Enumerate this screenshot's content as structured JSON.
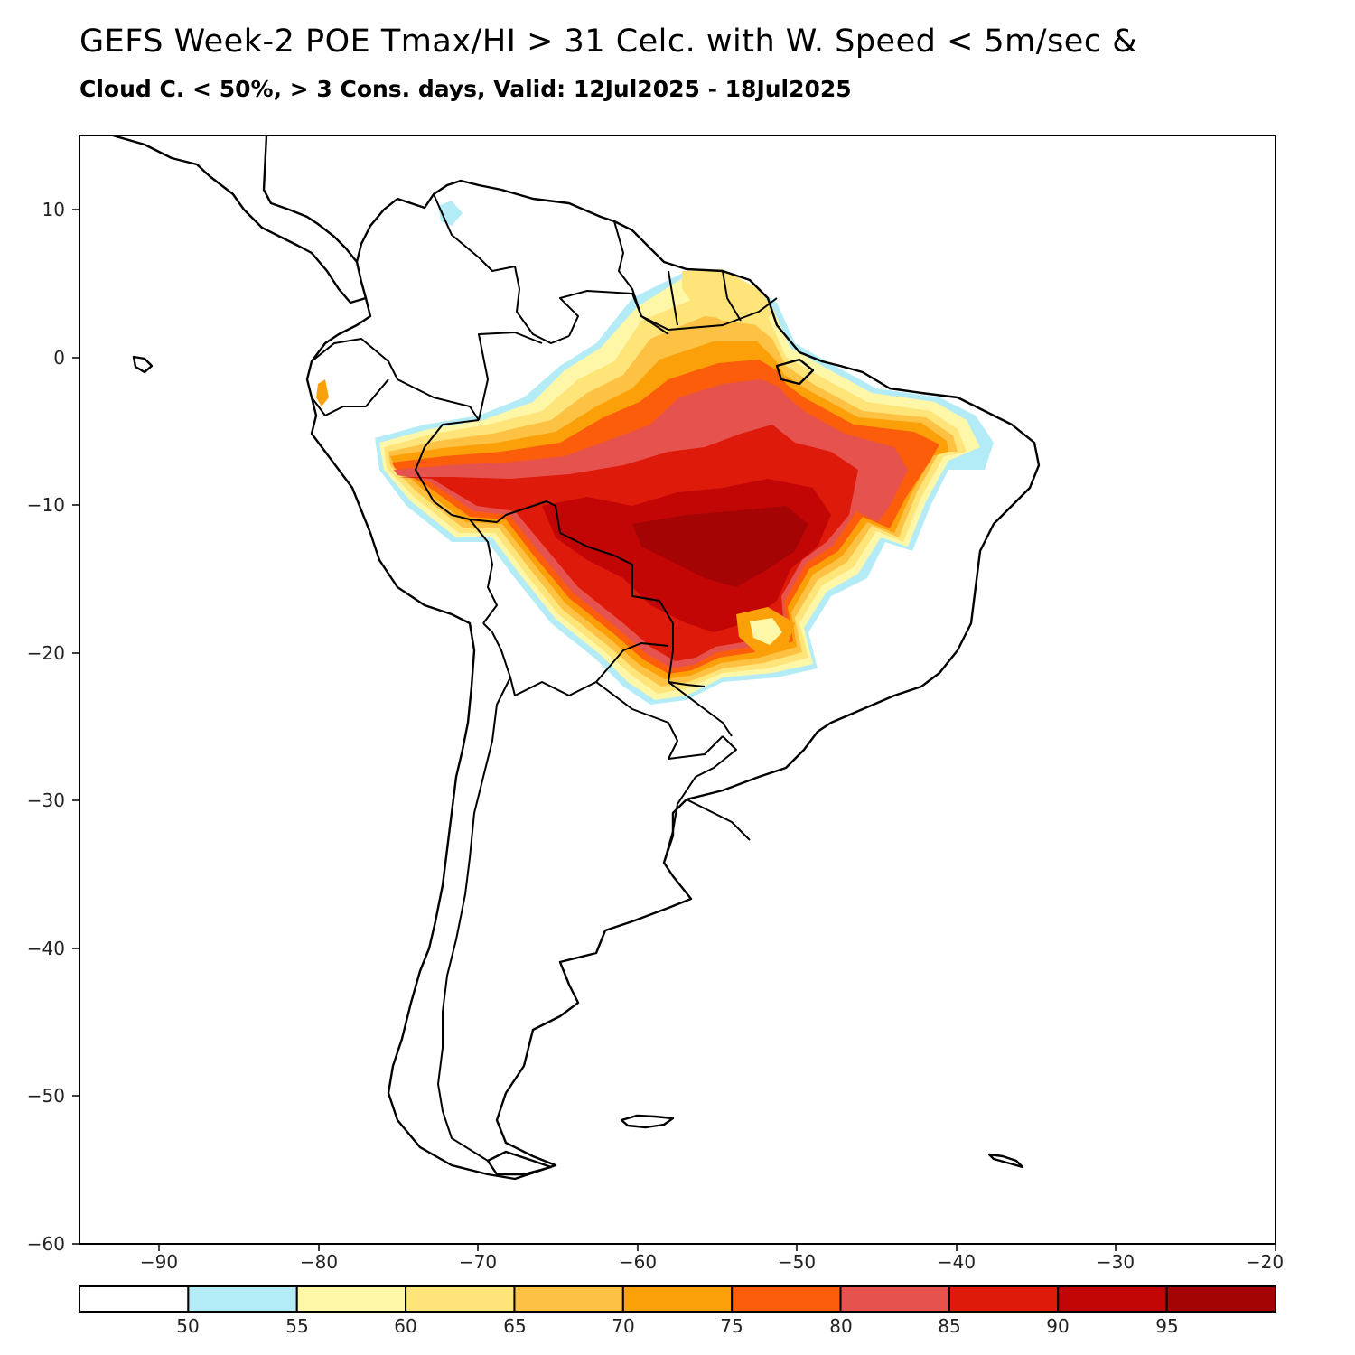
{
  "title": {
    "line1": "GEFS Week-2 POE Tmax/HI > 31 Celc. with W. Speed < 5m/sec &",
    "line2": "Cloud C. < 50%, > 3 Cons. days, Valid: 12Jul2025 - 18Jul2025"
  },
  "map": {
    "region": "South America",
    "lon_range": [
      -95,
      -20
    ],
    "lat_range": [
      -60,
      15
    ],
    "y_ticks": [
      "10",
      "0",
      "−10",
      "−20",
      "−30",
      "−40",
      "−50",
      "−60"
    ],
    "x_ticks": [
      "−90",
      "−80",
      "−70",
      "−60",
      "−50",
      "−40",
      "−30",
      "−20"
    ]
  },
  "colorbar": {
    "labels": [
      "50",
      "55",
      "60",
      "65",
      "70",
      "75",
      "80",
      "85",
      "90",
      "95"
    ],
    "colors": [
      "#ffffff",
      "#b3ecf7",
      "#fff7a8",
      "#ffe47a",
      "#fdc143",
      "#fca00a",
      "#fb5d0b",
      "#e6534f",
      "#de1a0a",
      "#c20606",
      "#a50404"
    ]
  }
}
